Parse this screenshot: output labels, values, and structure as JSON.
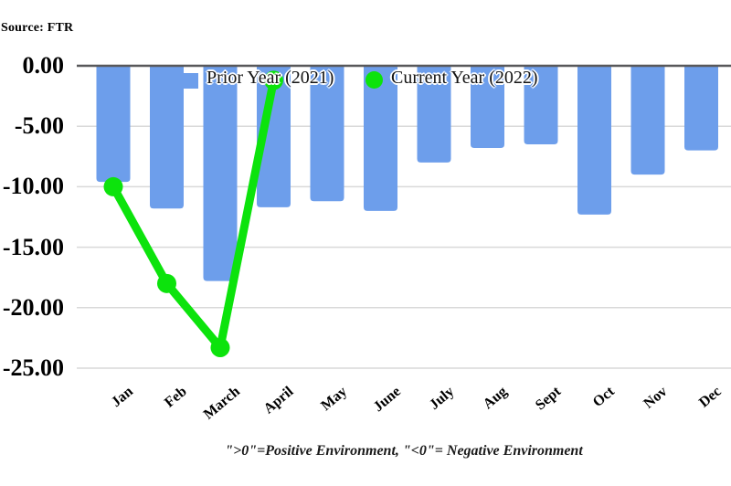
{
  "source_label": "Source: FTR",
  "caption": "\">0\"=Positive Environment, \"<0\"= Negative Environment",
  "legend": {
    "prior_label": "Prior Year (2021)",
    "current_label": "Current Year (2022)"
  },
  "colors": {
    "bar": "#6d9eeb",
    "line": "#0ce30c",
    "grid": "#d9d9d9",
    "zero_axis": "#58585a",
    "text": "#000000"
  },
  "chart_data": {
    "type": "bar",
    "title": "",
    "xlabel": "",
    "ylabel": "",
    "categories": [
      "Jan",
      "Feb",
      "March",
      "April",
      "May",
      "June",
      "July",
      "Aug",
      "Sept",
      "Oct",
      "Nov",
      "Dec"
    ],
    "series": [
      {
        "name": "Prior Year (2021)",
        "type": "bar",
        "color": "#6d9eeb",
        "values": [
          -9.6,
          -11.8,
          -17.8,
          -11.7,
          -11.2,
          -12.0,
          -8.0,
          -6.8,
          -6.5,
          -12.3,
          -9.0,
          -7.0
        ]
      },
      {
        "name": "Current Year (2022)",
        "type": "line",
        "color": "#0ce30c",
        "values": [
          -10.0,
          -18.0,
          -23.3,
          -1.2,
          null,
          null,
          null,
          null,
          null,
          null,
          null,
          null
        ]
      }
    ],
    "ylim": [
      -25,
      0
    ],
    "y_ticks": [
      0,
      -5,
      -10,
      -15,
      -20,
      -25
    ],
    "y_tick_labels": [
      "0.00",
      "-5.00",
      "-10.00",
      "-15.00",
      "-20.00",
      "-25.00"
    ],
    "grid": true,
    "legend_position": "top-inside"
  }
}
